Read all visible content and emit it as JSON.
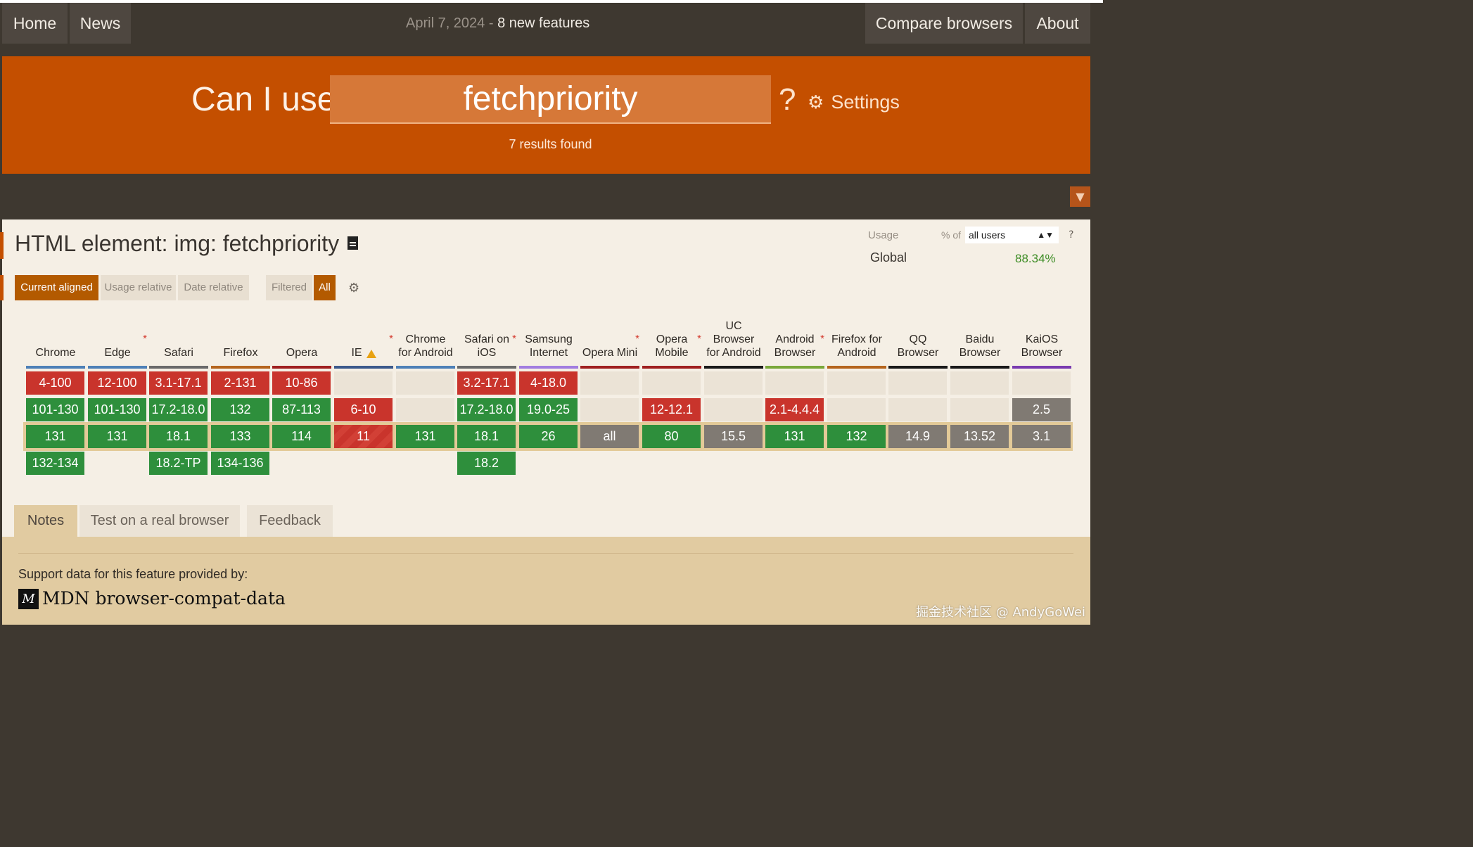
{
  "nav": {
    "home": "Home",
    "news": "News",
    "date": "April 7, 2024",
    "separator": "-",
    "features": "8 new features",
    "compare": "Compare browsers",
    "about": "About"
  },
  "search": {
    "label": "Can I use",
    "value": "fetchpriority",
    "help": "?",
    "settings": "Settings",
    "results": "7 results found"
  },
  "feature": {
    "title": "HTML element: img: fetchpriority",
    "views": [
      "Current aligned",
      "Usage relative",
      "Date relative"
    ],
    "filters": [
      "Filtered",
      "All"
    ]
  },
  "usage": {
    "label": "Usage",
    "pct_of": "% of",
    "users": "all users",
    "help": "?",
    "global_label": "Global",
    "global_value": "88.34%"
  },
  "browsers": [
    {
      "name": "Chrome",
      "star": "",
      "color": "#4e80b7",
      "cells": [
        [
          "4-100",
          "n"
        ],
        [
          "101-130",
          "y"
        ],
        [
          "131",
          "y"
        ],
        [
          "132-134",
          "y"
        ]
      ]
    },
    {
      "name": "Edge",
      "star": "*",
      "color": "#4e80b7",
      "cells": [
        [
          "12-100",
          "n"
        ],
        [
          "101-130",
          "y"
        ],
        [
          "131",
          "y"
        ],
        [
          "",
          ""
        ]
      ]
    },
    {
      "name": "Safari",
      "star": "",
      "color": "#6a6a6a",
      "cells": [
        [
          "3.1-17.1",
          "n"
        ],
        [
          "17.2-18.0",
          "y"
        ],
        [
          "18.1",
          "y"
        ],
        [
          "18.2-TP",
          "y"
        ]
      ]
    },
    {
      "name": "Firefox",
      "star": "",
      "color": "#b5651e",
      "cells": [
        [
          "2-131",
          "n"
        ],
        [
          "132",
          "y"
        ],
        [
          "133",
          "y"
        ],
        [
          "134-136",
          "y"
        ]
      ]
    },
    {
      "name": "Opera",
      "star": "",
      "color": "#a02020",
      "cells": [
        [
          "10-86",
          "n"
        ],
        [
          "87-113",
          "y"
        ],
        [
          "114",
          "y"
        ],
        [
          "",
          ""
        ]
      ]
    },
    {
      "name": "IE",
      "star": "*",
      "color": "#3c5a8c",
      "cells": [
        [
          "",
          "e"
        ],
        [
          "6-10",
          "n"
        ],
        [
          "11",
          "p"
        ],
        [
          "",
          ""
        ]
      ]
    },
    {
      "name": "Chrome for Android",
      "star": "",
      "color": "#4e80b7",
      "cells": [
        [
          "",
          "e"
        ],
        [
          "",
          "e"
        ],
        [
          "131",
          "y"
        ],
        [
          "",
          ""
        ]
      ]
    },
    {
      "name": "Safari on iOS",
      "star": "*",
      "color": "#6a6a6a",
      "cells": [
        [
          "3.2-17.1",
          "n"
        ],
        [
          "17.2-18.0",
          "y"
        ],
        [
          "18.1",
          "y"
        ],
        [
          "18.2",
          "y"
        ]
      ]
    },
    {
      "name": "Samsung Internet",
      "star": "",
      "color": "#a27de0",
      "cells": [
        [
          "4-18.0",
          "n"
        ],
        [
          "19.0-25",
          "y"
        ],
        [
          "26",
          "y"
        ],
        [
          "",
          ""
        ]
      ]
    },
    {
      "name": "Opera Mini",
      "star": "*",
      "color": "#a02020",
      "cells": [
        [
          "",
          "e"
        ],
        [
          "",
          "e"
        ],
        [
          "all",
          "u"
        ],
        [
          "",
          ""
        ]
      ]
    },
    {
      "name": "Opera Mobile",
      "star": "*",
      "color": "#a02020",
      "cells": [
        [
          "",
          "e"
        ],
        [
          "12-12.1",
          "n"
        ],
        [
          "80",
          "y"
        ],
        [
          "",
          ""
        ]
      ]
    },
    {
      "name": "UC Browser for Android",
      "star": "",
      "color": "#1a1a1a",
      "cells": [
        [
          "",
          "e"
        ],
        [
          "",
          "e"
        ],
        [
          "15.5",
          "u"
        ],
        [
          "",
          ""
        ]
      ]
    },
    {
      "name": "Android Browser",
      "star": "*",
      "color": "#7aa83a",
      "cells": [
        [
          "",
          "e"
        ],
        [
          "2.1-4.4.4",
          "n"
        ],
        [
          "131",
          "y"
        ],
        [
          "",
          ""
        ]
      ]
    },
    {
      "name": "Firefox for Android",
      "star": "",
      "color": "#b5651e",
      "cells": [
        [
          "",
          "e"
        ],
        [
          "",
          "e"
        ],
        [
          "132",
          "y"
        ],
        [
          "",
          ""
        ]
      ]
    },
    {
      "name": "QQ Browser",
      "star": "",
      "color": "#1a1a1a",
      "cells": [
        [
          "",
          "e"
        ],
        [
          "",
          "e"
        ],
        [
          "14.9",
          "u"
        ],
        [
          "",
          ""
        ]
      ]
    },
    {
      "name": "Baidu Browser",
      "star": "",
      "color": "#1a1a1a",
      "cells": [
        [
          "",
          "e"
        ],
        [
          "",
          "e"
        ],
        [
          "13.52",
          "u"
        ],
        [
          "",
          ""
        ]
      ]
    },
    {
      "name": "KaiOS Browser",
      "star": "",
      "color": "#7a3bb0",
      "cells": [
        [
          "",
          "e"
        ],
        [
          "2.5",
          "u"
        ],
        [
          "3.1",
          "u"
        ],
        [
          "",
          ""
        ]
      ]
    }
  ],
  "tabs": [
    "Notes",
    "Test on a real browser",
    "Feedback"
  ],
  "footer": {
    "support": "Support data for this feature provided by:",
    "mdn_logo": "M",
    "mdn": "MDN browser-compat-data"
  },
  "watermark": "掘金技术社区 @ AndyGoWei",
  "icons": {
    "gear": "gear-icon",
    "filter": "filter-icon",
    "document": "document-icon",
    "warning": "warning-icon"
  }
}
